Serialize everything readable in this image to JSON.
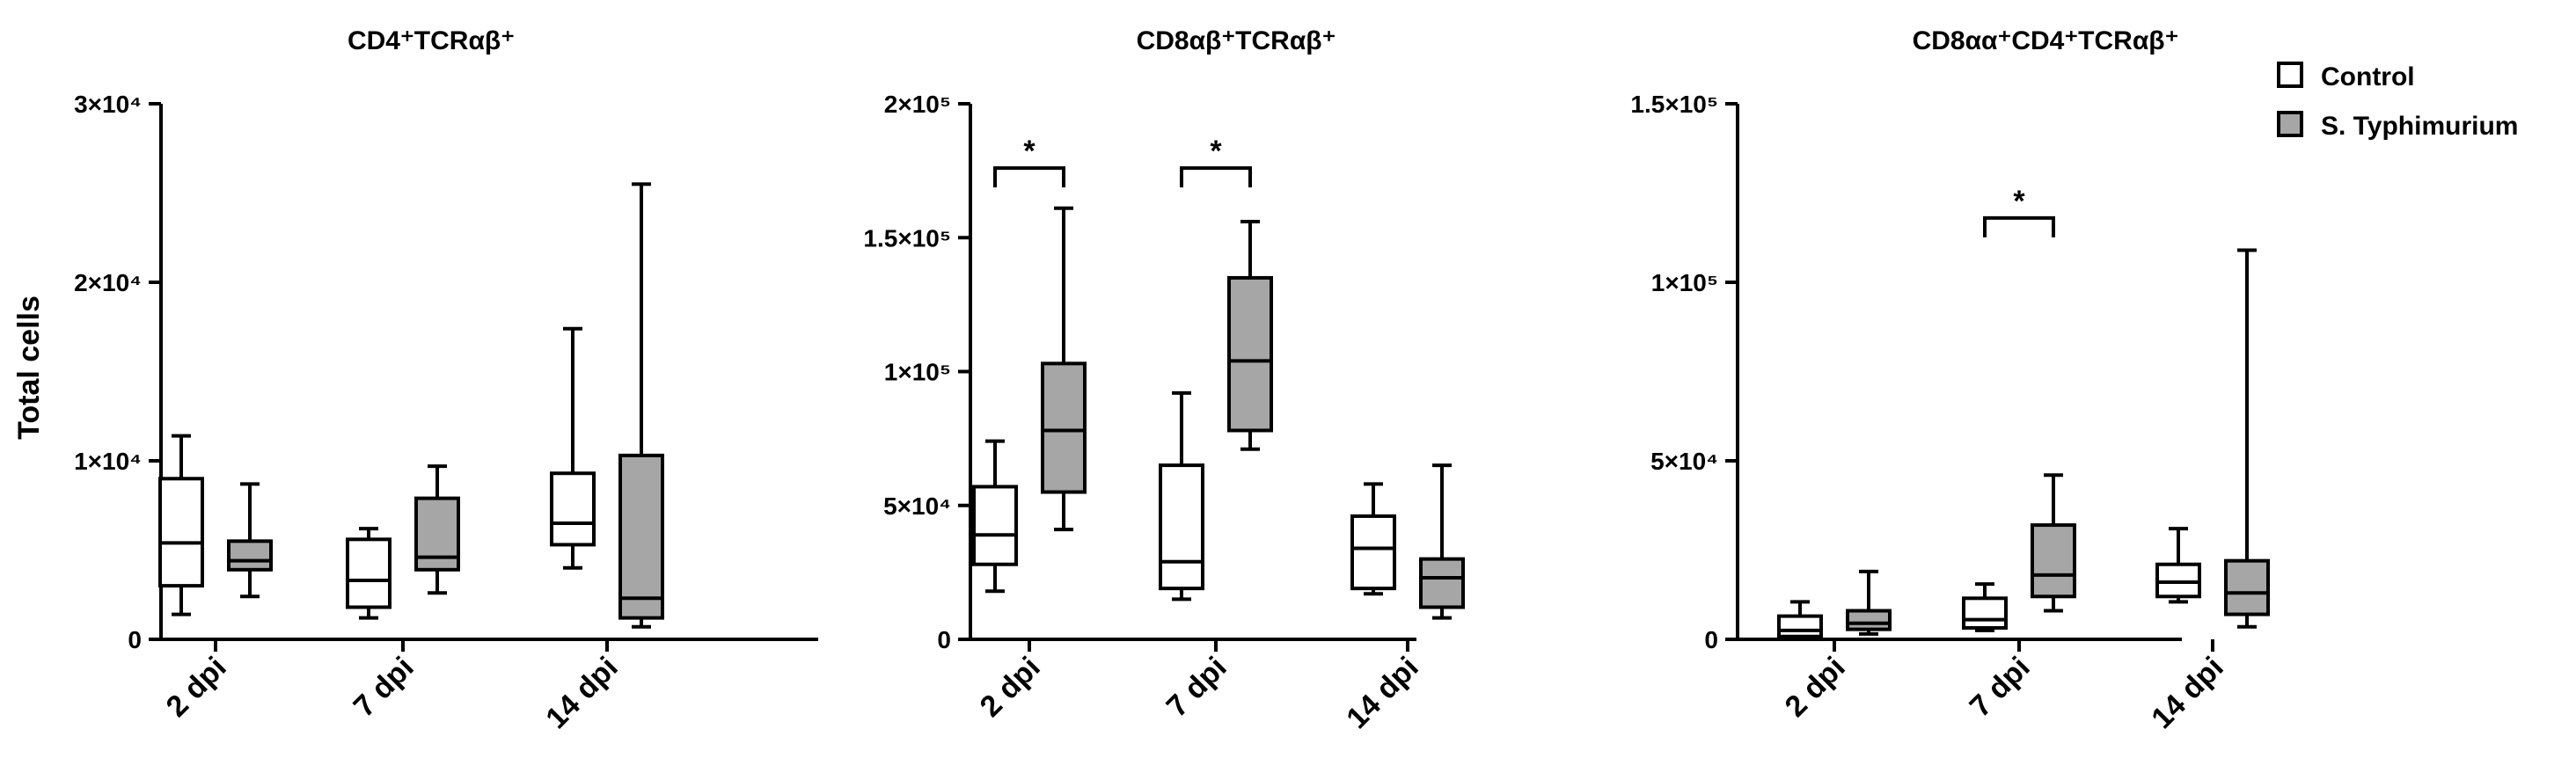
{
  "y_axis_label": "Total cells",
  "legend": [
    {
      "label": "Control",
      "color": "#ffffff"
    },
    {
      "label": "S. Typhimurium",
      "color": "#a6a6a6"
    }
  ],
  "chart_data": [
    {
      "type": "box",
      "title": "CD4⁺TCRαβ⁺",
      "ylabel": "Total cells",
      "ylim": [
        0,
        30000
      ],
      "yticks": [
        {
          "value": 0,
          "label": "0"
        },
        {
          "value": 10000,
          "label": "1×10⁴"
        },
        {
          "value": 20000,
          "label": "2×10⁴"
        },
        {
          "value": 30000,
          "label": "3×10⁴"
        }
      ],
      "categories": [
        "2 dpi",
        "7 dpi",
        "14 dpi"
      ],
      "series": [
        {
          "name": "Control",
          "color": "#ffffff",
          "boxes": [
            {
              "min": 1400,
              "q1": 3000,
              "median": 5400,
              "q3": 9000,
              "max": 11400
            },
            {
              "min": 1200,
              "q1": 1800,
              "median": 3300,
              "q3": 5600,
              "max": 6200
            },
            {
              "min": 4000,
              "q1": 5300,
              "median": 6500,
              "q3": 9300,
              "max": 17400
            }
          ]
        },
        {
          "name": "S. Typhimurium",
          "color": "#a6a6a6",
          "boxes": [
            {
              "min": 2400,
              "q1": 3900,
              "median": 4400,
              "q3": 5500,
              "max": 8700
            },
            {
              "min": 2600,
              "q1": 3900,
              "median": 4600,
              "q3": 7900,
              "max": 9700
            },
            {
              "min": 700,
              "q1": 1200,
              "median": 2300,
              "q3": 10300,
              "max": 25500
            }
          ]
        }
      ],
      "significance": []
    },
    {
      "type": "box",
      "title": "CD8αβ⁺TCRαβ⁺",
      "ylim": [
        0,
        200000
      ],
      "yticks": [
        {
          "value": 0,
          "label": "0"
        },
        {
          "value": 50000,
          "label": "5×10⁴"
        },
        {
          "value": 100000,
          "label": "1×10⁵"
        },
        {
          "value": 150000,
          "label": "1.5×10⁵"
        },
        {
          "value": 200000,
          "label": "2×10⁵"
        }
      ],
      "categories": [
        "2 dpi",
        "7 dpi",
        "14 dpi"
      ],
      "series": [
        {
          "name": "Control",
          "color": "#ffffff",
          "boxes": [
            {
              "min": 18000,
              "q1": 28000,
              "median": 39000,
              "q3": 57000,
              "max": 74000
            },
            {
              "min": 15000,
              "q1": 19000,
              "median": 29000,
              "q3": 65000,
              "max": 92000
            },
            {
              "min": 17000,
              "q1": 19000,
              "median": 34000,
              "q3": 46000,
              "max": 58000
            }
          ]
        },
        {
          "name": "S. Typhimurium",
          "color": "#a6a6a6",
          "boxes": [
            {
              "min": 41000,
              "q1": 55000,
              "median": 78000,
              "q3": 103000,
              "max": 161000
            },
            {
              "min": 71000,
              "q1": 78000,
              "median": 104000,
              "q3": 135000,
              "max": 156000
            },
            {
              "min": 8000,
              "q1": 12000,
              "median": 23000,
              "q3": 30000,
              "max": 65000
            }
          ]
        }
      ],
      "significance": [
        {
          "category_index": 0,
          "label": "*",
          "y": 176000
        },
        {
          "category_index": 1,
          "label": "*",
          "y": 176000
        }
      ]
    },
    {
      "type": "box",
      "title": "CD8αα⁺CD4⁺TCRαβ⁺",
      "ylim": [
        0,
        150000
      ],
      "yticks": [
        {
          "value": 0,
          "label": "0"
        },
        {
          "value": 50000,
          "label": "5×10⁴"
        },
        {
          "value": 100000,
          "label": "1×10⁵"
        },
        {
          "value": 150000,
          "label": "1.5×10⁵"
        }
      ],
      "categories": [
        "2 dpi",
        "7 dpi",
        "14 dpi"
      ],
      "series": [
        {
          "name": "Control",
          "color": "#ffffff",
          "boxes": [
            {
              "min": 200,
              "q1": 800,
              "median": 2500,
              "q3": 6500,
              "max": 10500
            },
            {
              "min": 2500,
              "q1": 3200,
              "median": 5500,
              "q3": 11500,
              "max": 15500
            },
            {
              "min": 10500,
              "q1": 12000,
              "median": 16000,
              "q3": 21000,
              "max": 31000
            }
          ]
        },
        {
          "name": "S. Typhimurium",
          "color": "#a6a6a6",
          "boxes": [
            {
              "min": 1500,
              "q1": 2800,
              "median": 4500,
              "q3": 8000,
              "max": 19000
            },
            {
              "min": 8000,
              "q1": 12000,
              "median": 18000,
              "q3": 32000,
              "max": 46000
            },
            {
              "min": 3500,
              "q1": 7000,
              "median": 13000,
              "q3": 22000,
              "max": 109000
            }
          ]
        }
      ],
      "significance": [
        {
          "category_index": 1,
          "label": "*",
          "y": 118000
        }
      ]
    }
  ]
}
